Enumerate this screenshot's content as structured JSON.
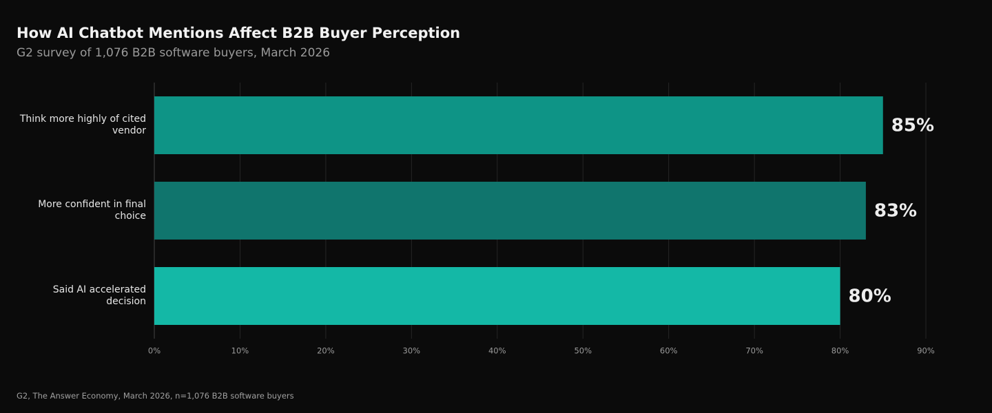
{
  "chart_data": {
    "type": "bar",
    "orientation": "horizontal",
    "title": "How AI Chatbot Mentions Affect B2B Buyer Perception",
    "subtitle": "G2 survey of 1,076 B2B software buyers, March 2026",
    "source": "G2, The Answer Economy, March 2026, n=1,076 B2B software buyers",
    "categories": [
      "Think more highly of cited vendor",
      "More confident in final choice",
      "Said AI accelerated decision"
    ],
    "values": [
      85,
      83,
      80
    ],
    "value_labels": [
      "85%",
      "83%",
      "80%"
    ],
    "colors": [
      "#0e9486",
      "#10756d",
      "#14b8a6"
    ],
    "xlim": [
      0,
      90
    ],
    "xticks": [
      {
        "value": 0,
        "label": "0%"
      },
      {
        "value": 10,
        "label": "10%"
      },
      {
        "value": 20,
        "label": "20%"
      },
      {
        "value": 30,
        "label": "30%"
      },
      {
        "value": 40,
        "label": "40%"
      },
      {
        "value": 50,
        "label": "50%"
      },
      {
        "value": 60,
        "label": "60%"
      },
      {
        "value": 70,
        "label": "70%"
      },
      {
        "value": 80,
        "label": "80%"
      },
      {
        "value": 90,
        "label": "90%"
      }
    ],
    "grid": true
  }
}
